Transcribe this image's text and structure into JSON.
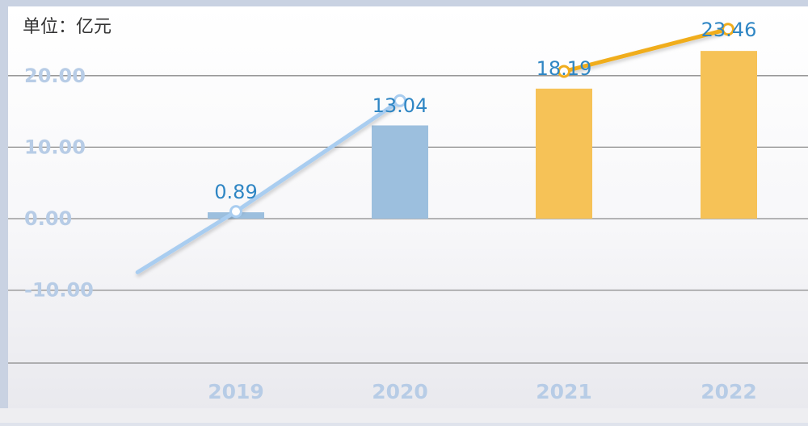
{
  "unit_label": "单位：亿元",
  "colors": {
    "blue_bar": "#9cbfde",
    "gold_bar": "#f6c257",
    "blue_line": "#a9cdf0",
    "gold_line": "#f0ad1d",
    "tick_label": "#b7cce6",
    "value_label": "#2f86c4",
    "grid": "#8a8a8a"
  },
  "chart_data": {
    "type": "bar",
    "categories": [
      "2019",
      "2020",
      "2021",
      "2022"
    ],
    "values": [
      0.89,
      13.04,
      18.19,
      23.46
    ],
    "value_labels": [
      "0.89",
      "13.04",
      "18.19",
      "23.46"
    ],
    "yticks": [
      "20.00",
      "10.00",
      "0.00",
      "-10.00"
    ],
    "ytick_values": [
      20,
      10,
      0,
      -10
    ],
    "ylim": [
      -20,
      30
    ],
    "grid": true,
    "bar_colors": [
      "blue",
      "blue",
      "gold",
      "gold"
    ],
    "trend_lines": [
      {
        "color": "blue",
        "points": [
          [
            2018.4,
            -7.5
          ],
          [
            2019,
            1.0
          ],
          [
            2020,
            16.5
          ]
        ]
      },
      {
        "color": "gold",
        "points": [
          [
            2021,
            20.6
          ],
          [
            2022,
            26.5
          ]
        ]
      }
    ]
  }
}
